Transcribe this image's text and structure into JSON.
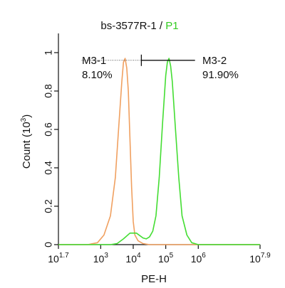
{
  "chart_data": {
    "type": "line",
    "title_prefix": "bs-3577R-1 / ",
    "title_gate": "P1",
    "xlabel": "PE-H",
    "ylabel": "Count (10",
    "ylabel_exp": "3",
    "ylabel_close": ")",
    "x_scale": "log",
    "xlim": [
      1.7,
      7.9
    ],
    "ylim": [
      0,
      1.1
    ],
    "x_ticks": [
      {
        "exp": 1.7,
        "base": "10",
        "sup": "1.7"
      },
      {
        "exp": 3,
        "base": "10",
        "sup": "3"
      },
      {
        "exp": 4,
        "base": "10",
        "sup": "4"
      },
      {
        "exp": 5,
        "base": "10",
        "sup": "5"
      },
      {
        "exp": 6,
        "base": "10",
        "sup": "6"
      },
      {
        "exp": 7.9,
        "base": "10",
        "sup": "7.9"
      }
    ],
    "y_ticks": [
      "0",
      "0.2",
      "0.4",
      "0.6",
      "0.8",
      "1"
    ],
    "y_tick_values": [
      0,
      0.2,
      0.4,
      0.6,
      0.8,
      1.0
    ],
    "colors": {
      "control": "#f0a060",
      "sample": "#44dd33",
      "gate_label": "#33cc22",
      "axis": "#111111"
    },
    "series": [
      {
        "color": "#f0a060",
        "x": [
          1.7,
          2.6,
          2.9,
          3.1,
          3.3,
          3.45,
          3.55,
          3.65,
          3.7,
          3.75,
          3.8,
          3.85,
          3.9,
          3.95,
          4.0,
          4.05,
          4.15,
          4.3,
          4.5,
          7.9
        ],
        "y": [
          0,
          0,
          0.01,
          0.05,
          0.15,
          0.35,
          0.6,
          0.85,
          0.95,
          0.97,
          0.92,
          0.8,
          0.55,
          0.3,
          0.12,
          0.05,
          0.02,
          0.005,
          0,
          0
        ]
      },
      {
        "color": "#44dd33",
        "x": [
          1.7,
          3.3,
          3.5,
          3.7,
          3.9,
          4.1,
          4.3,
          4.4,
          4.5,
          4.6,
          4.7,
          4.8,
          4.9,
          5.0,
          5.05,
          5.1,
          5.15,
          5.2,
          5.3,
          5.4,
          5.5,
          5.65,
          5.8,
          6.0,
          7.9
        ],
        "y": [
          0,
          0,
          0.005,
          0.03,
          0.06,
          0.06,
          0.035,
          0.03,
          0.04,
          0.07,
          0.15,
          0.35,
          0.63,
          0.88,
          0.95,
          0.97,
          0.93,
          0.85,
          0.6,
          0.35,
          0.15,
          0.05,
          0.01,
          0,
          0
        ]
      }
    ],
    "gates": [
      {
        "name": "M3-1",
        "percent": "8.10%",
        "x_start": 2.5,
        "x_end": 4.25
      },
      {
        "name": "M3-2",
        "percent": "91.90%",
        "x_start": 4.25,
        "x_end": 5.9
      }
    ],
    "gate_y": 0.96
  }
}
